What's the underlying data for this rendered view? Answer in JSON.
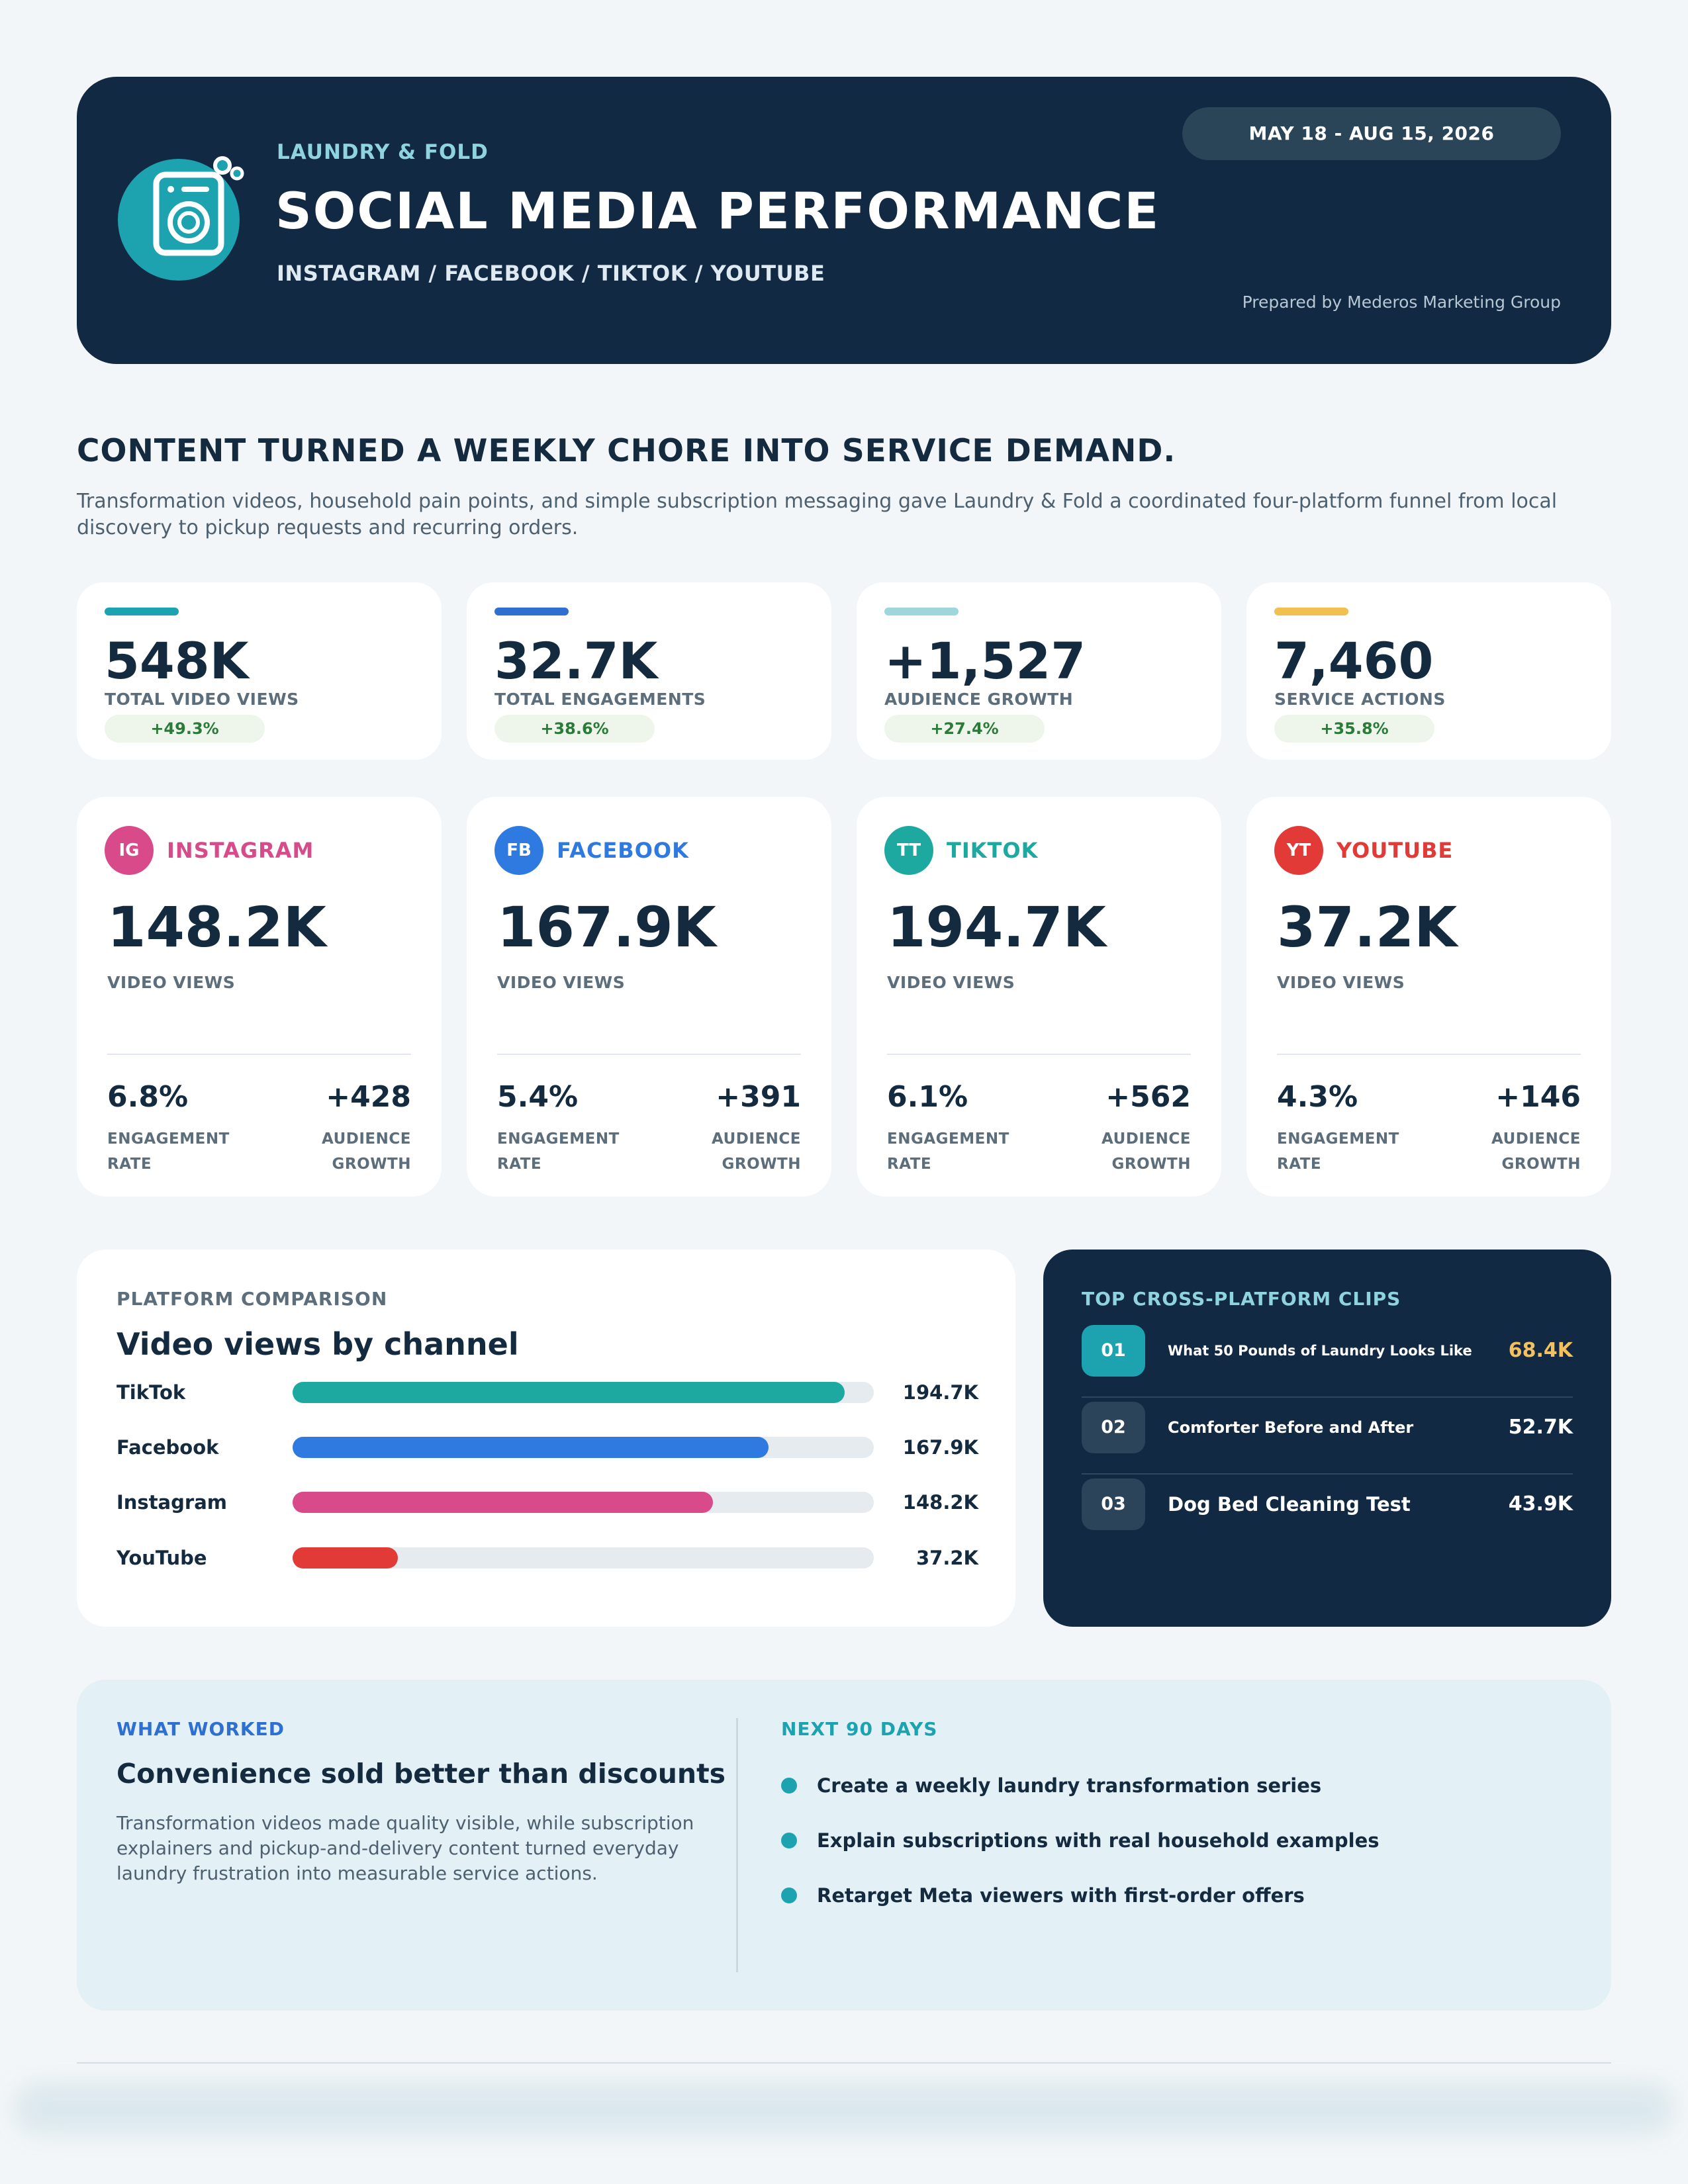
{
  "header": {
    "brand": "LAUNDRY & FOLD",
    "title": "SOCIAL MEDIA PERFORMANCE",
    "platforms": "INSTAGRAM / FACEBOOK / TIKTOK / YOUTUBE",
    "date_range": "MAY 18 - AUG 15, 2026",
    "prepared_by": "Prepared by Mederos Marketing Group",
    "logo_icon": "washing-machine-icon"
  },
  "intro": {
    "headline": "CONTENT TURNED A WEEKLY CHORE INTO SERVICE DEMAND.",
    "body": "Transformation videos, household pain points, and simple subscription messaging gave Laundry & Fold a coordinated four-platform funnel from local discovery to pickup requests and recurring orders."
  },
  "kpis": [
    {
      "value": "548K",
      "label": "TOTAL VIDEO VIEWS",
      "delta": "+49.3%",
      "color": "#1da3b0"
    },
    {
      "value": "32.7K",
      "label": "TOTAL ENGAGEMENTS",
      "delta": "+38.6%",
      "color": "#2f6fd0"
    },
    {
      "value": "+1,527",
      "label": "AUDIENCE GROWTH",
      "delta": "+27.4%",
      "color": "#9ed6dc"
    },
    {
      "value": "7,460",
      "label": "SERVICE ACTIONS",
      "delta": "+35.8%",
      "color": "#f0c050"
    }
  ],
  "platforms": [
    {
      "badge": "IG",
      "name": "INSTAGRAM",
      "color": "#d84a8a",
      "views": "148.2K",
      "views_label": "VIDEO VIEWS",
      "engagement_rate": "6.8%",
      "engagement_label": "ENGAGEMENT RATE",
      "audience_growth": "+428",
      "audience_label": "AUDIENCE GROWTH"
    },
    {
      "badge": "FB",
      "name": "FACEBOOK",
      "color": "#2f7ae0",
      "views": "167.9K",
      "views_label": "VIDEO VIEWS",
      "engagement_rate": "5.4%",
      "engagement_label": "ENGAGEMENT RATE",
      "audience_growth": "+391",
      "audience_label": "AUDIENCE GROWTH"
    },
    {
      "badge": "TT",
      "name": "TIKTOK",
      "color": "#1ea9a0",
      "views": "194.7K",
      "views_label": "VIDEO VIEWS",
      "engagement_rate": "6.1%",
      "engagement_label": "ENGAGEMENT RATE",
      "audience_growth": "+562",
      "audience_label": "AUDIENCE GROWTH"
    },
    {
      "badge": "YT",
      "name": "YOUTUBE",
      "color": "#e23a36",
      "views": "37.2K",
      "views_label": "VIDEO VIEWS",
      "engagement_rate": "4.3%",
      "engagement_label": "ENGAGEMENT RATE",
      "audience_growth": "+146",
      "audience_label": "AUDIENCE GROWTH"
    }
  ],
  "comparison": {
    "kicker": "PLATFORM COMPARISON",
    "title": "Video views by channel"
  },
  "chart_data": {
    "type": "bar",
    "orientation": "horizontal",
    "title": "Video views by channel",
    "categories": [
      "TikTok",
      "Facebook",
      "Instagram",
      "YouTube"
    ],
    "values": [
      194.7,
      167.9,
      148.2,
      37.2
    ],
    "value_labels": [
      "194.7K",
      "167.9K",
      "148.2K",
      "37.2K"
    ],
    "units": "thousand views",
    "colors": [
      "#1ea9a0",
      "#2f7ae0",
      "#d84a8a",
      "#e23a36"
    ],
    "xlim": [
      0,
      205
    ]
  },
  "clips": {
    "kicker": "TOP CROSS-PLATFORM CLIPS",
    "items": [
      {
        "rank": "01",
        "title": "What 50 Pounds of Laundry Looks Like",
        "views": "68.4K"
      },
      {
        "rank": "02",
        "title": "Comforter Before and After",
        "views": "52.7K"
      },
      {
        "rank": "03",
        "title": "Dog Bed Cleaning Test",
        "views": "43.9K"
      }
    ]
  },
  "insights": {
    "worked_kicker": "WHAT WORKED",
    "worked_title": "Convenience sold better than discounts",
    "worked_body": "Transformation videos made quality visible, while subscription explainers and pickup-and-delivery content turned everyday laundry frustration into measurable service actions.",
    "next_kicker": "NEXT 90 DAYS",
    "next_items": [
      "Create a weekly laundry transformation series",
      "Explain subscriptions with real household examples",
      "Retarget Meta viewers with first-order offers"
    ]
  }
}
